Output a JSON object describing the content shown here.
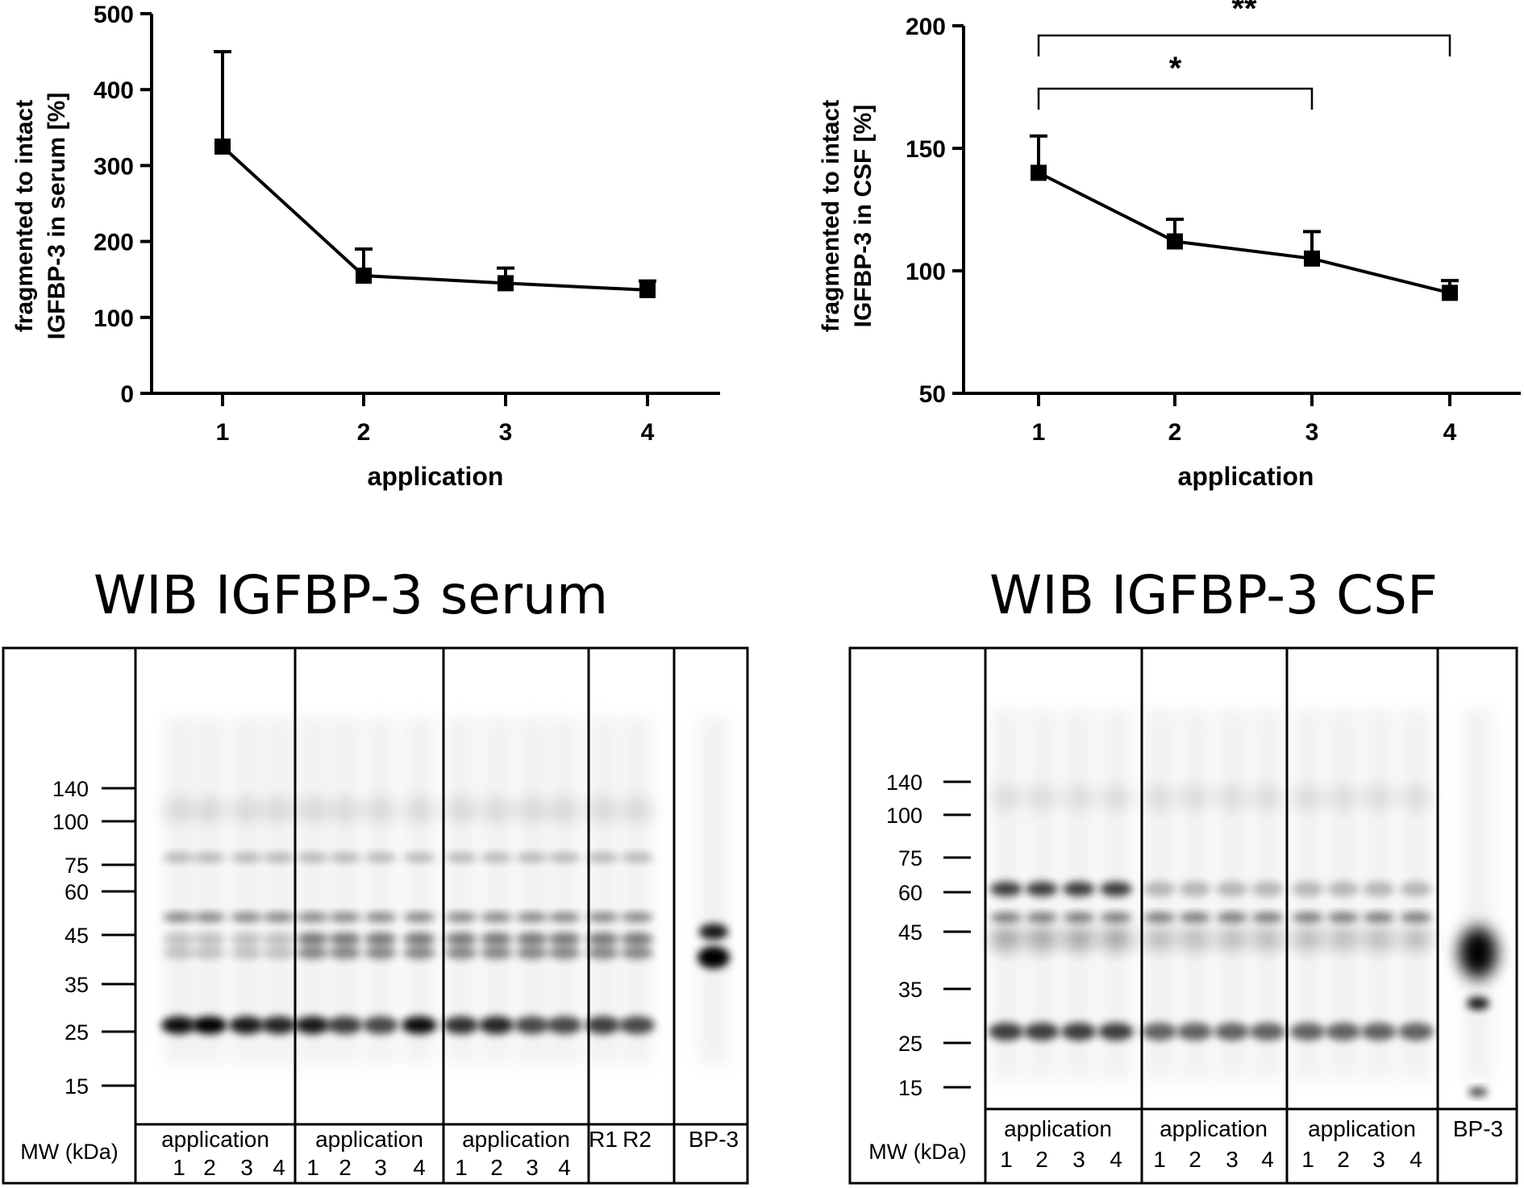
{
  "chart_data": [
    {
      "type": "line",
      "ylabel_line1": "fragmented to intact",
      "ylabel_line2": "IGFBP-3 in serum [%]",
      "xlabel": "application",
      "x": [
        "1",
        "2",
        "3",
        "4"
      ],
      "series": [
        {
          "values": [
            325,
            155,
            145,
            136
          ],
          "error_upper": [
            450,
            190,
            165,
            148
          ]
        }
      ],
      "ylim": [
        0,
        500
      ],
      "yticks": [
        "0",
        "100",
        "200",
        "300",
        "400",
        "500"
      ]
    },
    {
      "type": "line",
      "ylabel_line1": "fragmented to intact",
      "ylabel_line2": "IGFBP-3 in CSF [%]",
      "xlabel": "application",
      "x": [
        "1",
        "2",
        "3",
        "4"
      ],
      "series": [
        {
          "values": [
            140,
            112,
            105,
            91
          ],
          "error_upper": [
            155,
            121,
            116,
            96
          ]
        }
      ],
      "ylim": [
        50,
        200
      ],
      "yticks": [
        "50",
        "100",
        "150",
        "200"
      ],
      "significance": [
        {
          "from": "1",
          "to": "3",
          "label": "*"
        },
        {
          "from": "1",
          "to": "4",
          "label": "**"
        }
      ]
    }
  ],
  "blots": [
    {
      "title": "WIB IGFBP-3 serum",
      "mw_label": "MW (kDa)",
      "markers": [
        "140",
        "100",
        "75",
        "60",
        "45",
        "35",
        "25",
        "15"
      ],
      "groups": [
        {
          "label": "application",
          "lanes": [
            "1",
            "2",
            "3",
            "4"
          ]
        },
        {
          "label": "application",
          "lanes": [
            "1",
            "2",
            "3",
            "4"
          ]
        },
        {
          "label": "application",
          "lanes": [
            "1",
            "2",
            "3",
            "4"
          ]
        },
        {
          "label": "",
          "lanes": [
            "R1",
            "R2"
          ]
        },
        {
          "label": "",
          "lanes": [
            "BP-3"
          ]
        }
      ]
    },
    {
      "title": "WIB IGFBP-3 CSF",
      "mw_label": "MW (kDa)",
      "markers": [
        "140",
        "100",
        "75",
        "60",
        "45",
        "35",
        "25",
        "15"
      ],
      "groups": [
        {
          "label": "application",
          "lanes": [
            "1",
            "2",
            "3",
            "4"
          ]
        },
        {
          "label": "application",
          "lanes": [
            "1",
            "2",
            "3",
            "4"
          ]
        },
        {
          "label": "application",
          "lanes": [
            "1",
            "2",
            "3",
            "4"
          ]
        },
        {
          "label": "",
          "lanes": [
            "BP-3"
          ]
        }
      ]
    }
  ]
}
